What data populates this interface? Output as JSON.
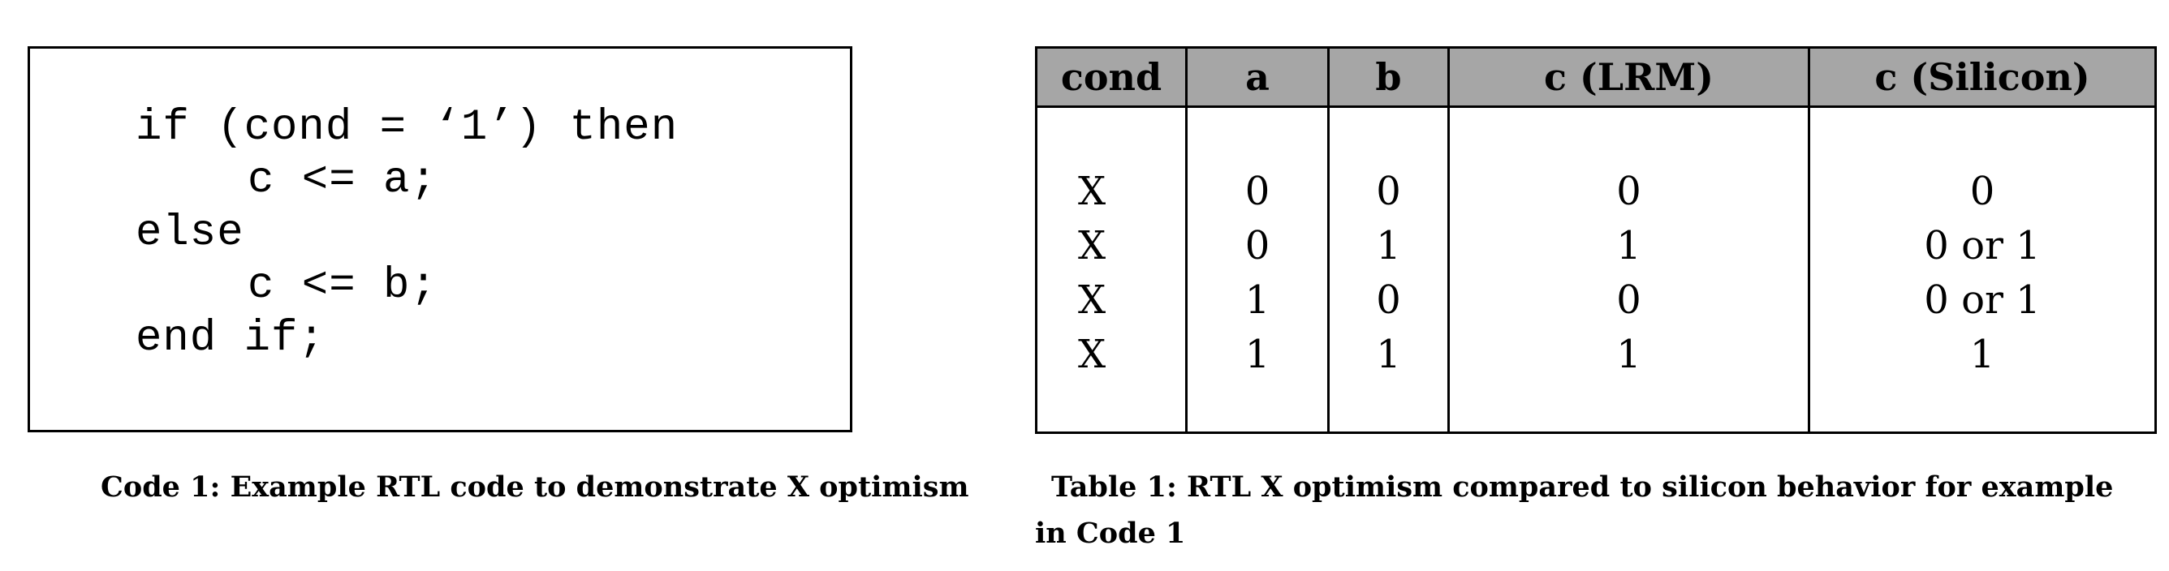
{
  "code": {
    "lines": [
      {
        "text": "if (cond = ‘1’) then",
        "indent": false
      },
      {
        "text": "c <= a;",
        "indent": true
      },
      {
        "text": "else",
        "indent": false
      },
      {
        "text": "c <= b;",
        "indent": true
      },
      {
        "text": "end if;",
        "indent": false
      }
    ],
    "caption": "Code 1: Example RTL code to demonstrate X optimism"
  },
  "table": {
    "headers": [
      "cond",
      "a",
      "b",
      "c (LRM)",
      "c (Silicon)"
    ],
    "columns": {
      "cond": [
        "X",
        "X",
        "X",
        "X"
      ],
      "a": [
        "0",
        "0",
        "1",
        "1"
      ],
      "b": [
        "0",
        "1",
        "0",
        "1"
      ],
      "c_lrm": [
        "0",
        "1",
        "0",
        "1"
      ],
      "c_silicon": [
        "0",
        "0 or 1",
        "0 or 1",
        "1"
      ]
    },
    "header_background": "#a6a6a6",
    "caption": "Table 1: RTL X optimism compared to silicon behavior for example in Code 1"
  }
}
